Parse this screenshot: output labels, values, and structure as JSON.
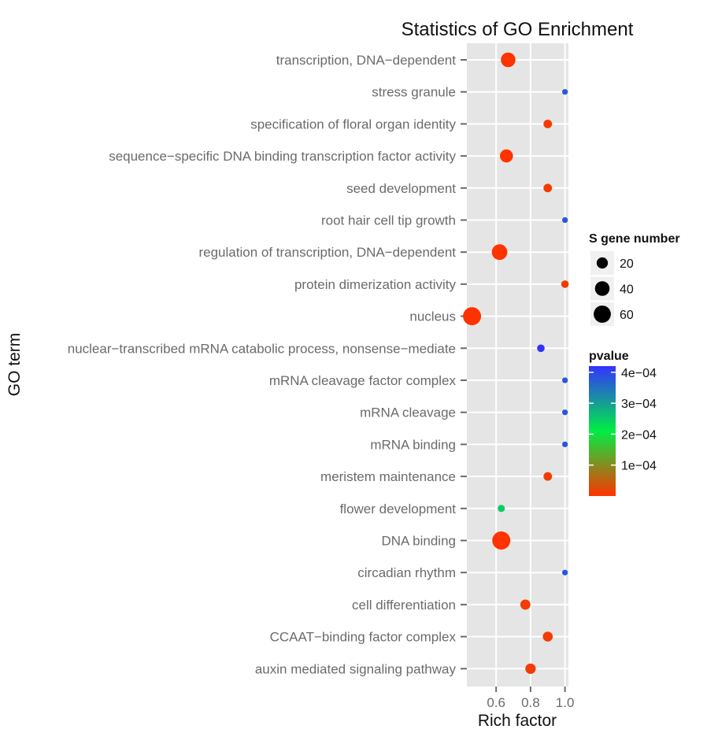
{
  "chart_data": {
    "type": "scatter",
    "title": "Statistics of GO Enrichment",
    "xlabel": "Rich factor",
    "ylabel": "GO term",
    "xlim": [
      0.43,
      1.02
    ],
    "x_ticks": [
      0.6,
      0.8,
      1.0
    ],
    "x_tick_labels": [
      "0.6",
      "0.8",
      "1.0"
    ],
    "grid": true,
    "categories": [
      "transcription, DNA−dependent",
      "stress granule",
      "specification of floral organ identity",
      "sequence−specific DNA binding transcription factor activity",
      "seed development",
      "root hair cell tip growth",
      "regulation of transcription, DNA−dependent",
      "protein dimerization activity",
      "nucleus",
      "nuclear−transcribed mRNA catabolic process, nonsense−mediate",
      "mRNA cleavage factor complex",
      "mRNA cleavage",
      "mRNA binding",
      "meristem maintenance",
      "flower development",
      "DNA binding",
      "circadian rhythm",
      "cell differentiation",
      "CCAAT−binding factor complex",
      "auxin mediated signaling pathway"
    ],
    "points": [
      {
        "term": "transcription, DNA−dependent",
        "rich_factor": 0.67,
        "gene_number": 40,
        "pvalue": 0.0
      },
      {
        "term": "stress granule",
        "rich_factor": 1.0,
        "gene_number": 2,
        "pvalue": 0.00038
      },
      {
        "term": "specification of floral organ identity",
        "rich_factor": 0.9,
        "gene_number": 9,
        "pvalue": 1e-05
      },
      {
        "term": "sequence−specific DNA binding transcription factor activity",
        "rich_factor": 0.66,
        "gene_number": 30,
        "pvalue": 0.0
      },
      {
        "term": "seed development",
        "rich_factor": 0.9,
        "gene_number": 9,
        "pvalue": 1e-05
      },
      {
        "term": "root hair cell tip growth",
        "rich_factor": 1.0,
        "gene_number": 2,
        "pvalue": 0.00038
      },
      {
        "term": "regulation of transcription, DNA−dependent",
        "rich_factor": 0.62,
        "gene_number": 47,
        "pvalue": 0.0
      },
      {
        "term": "protein dimerization activity",
        "rich_factor": 1.0,
        "gene_number": 6,
        "pvalue": 1e-05
      },
      {
        "term": "nucleus",
        "rich_factor": 0.46,
        "gene_number": 68,
        "pvalue": 0.0
      },
      {
        "term": "nuclear−transcribed mRNA catabolic process, nonsense−mediate",
        "rich_factor": 0.86,
        "gene_number": 6,
        "pvalue": 0.00042
      },
      {
        "term": "mRNA cleavage factor complex",
        "rich_factor": 1.0,
        "gene_number": 2,
        "pvalue": 0.00038
      },
      {
        "term": "mRNA cleavage",
        "rich_factor": 1.0,
        "gene_number": 2,
        "pvalue": 0.00038
      },
      {
        "term": "mRNA binding",
        "rich_factor": 1.0,
        "gene_number": 2,
        "pvalue": 0.00038
      },
      {
        "term": "meristem maintenance",
        "rich_factor": 0.9,
        "gene_number": 9,
        "pvalue": 1e-05
      },
      {
        "term": "flower development",
        "rich_factor": 0.63,
        "gene_number": 5,
        "pvalue": 0.00025
      },
      {
        "term": "DNA binding",
        "rich_factor": 0.63,
        "gene_number": 68,
        "pvalue": 0.0
      },
      {
        "term": "circadian rhythm",
        "rich_factor": 1.0,
        "gene_number": 2,
        "pvalue": 0.00038
      },
      {
        "term": "cell differentiation",
        "rich_factor": 0.77,
        "gene_number": 15,
        "pvalue": 1e-05
      },
      {
        "term": "CCAAT−binding factor complex",
        "rich_factor": 0.9,
        "gene_number": 14,
        "pvalue": 1e-05
      },
      {
        "term": "auxin mediated signaling pathway",
        "rich_factor": 0.8,
        "gene_number": 16,
        "pvalue": 1e-05
      }
    ],
    "size_legend": {
      "title": "S gene number",
      "values": [
        20,
        40,
        60
      ],
      "labels": [
        "20",
        "40",
        "60"
      ]
    },
    "color_legend": {
      "title": "pvalue",
      "min": 0,
      "max": 0.00042,
      "ticks": [
        0.0004,
        0.0003,
        0.0002,
        0.0001
      ],
      "tick_labels": [
        "4e−04",
        "3e−04",
        "2e−04",
        "1e−04"
      ],
      "colors": [
        "#ff3300",
        "#00ee44",
        "#3333ff"
      ]
    },
    "legend_position": "right"
  }
}
